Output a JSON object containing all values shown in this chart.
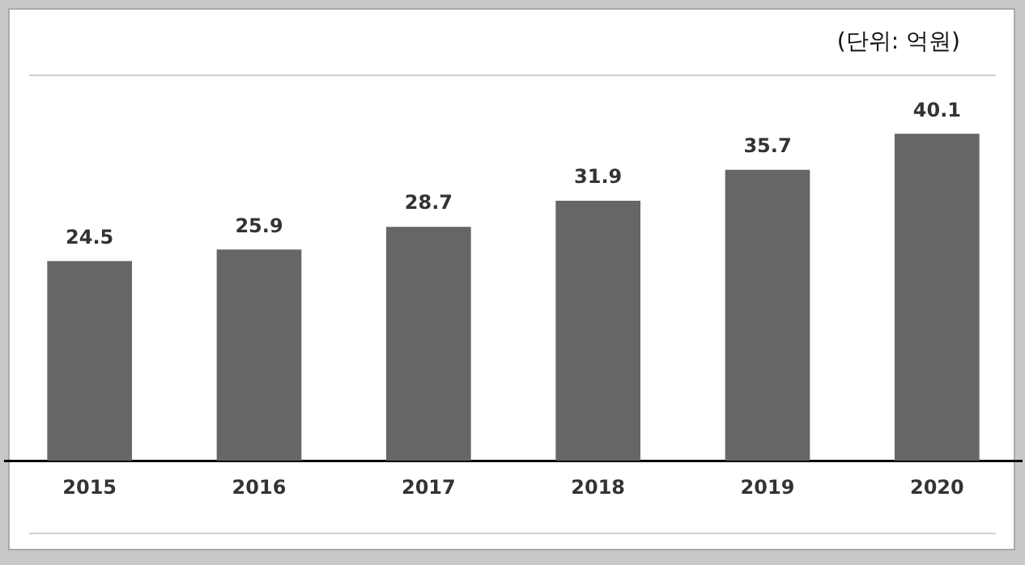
{
  "chart_data": {
    "type": "bar",
    "categories": [
      "2015",
      "2016",
      "2017",
      "2018",
      "2019",
      "2020"
    ],
    "values": [
      24.5,
      25.9,
      28.7,
      31.9,
      35.7,
      40.1
    ],
    "color": "#666666",
    "data_labels": true,
    "grid": false,
    "legend": false,
    "tick_labels": "x",
    "annotations": [
      "(단위: 억원)"
    ]
  }
}
